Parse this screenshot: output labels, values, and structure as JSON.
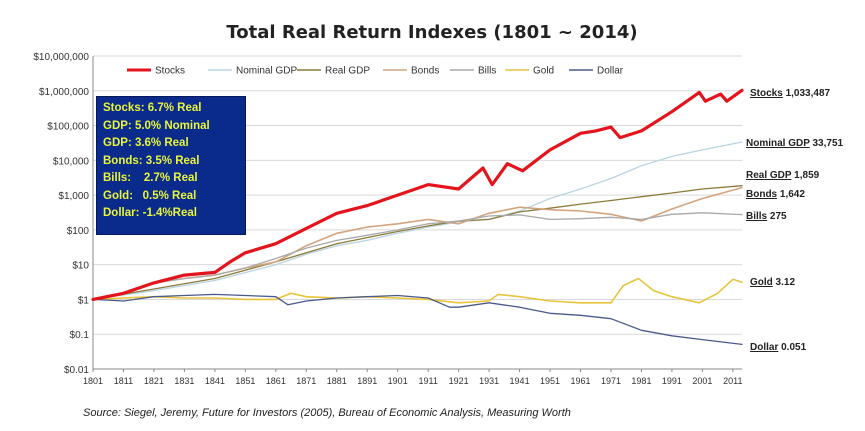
{
  "chart_data": {
    "type": "line",
    "title": "Total Real Return Indexes (1801 ~ 2014)",
    "y_scale": "log",
    "ylim": [
      0.01,
      10000000
    ],
    "xlim": [
      1801,
      2014
    ],
    "y_tick_labels": [
      "$10,000,000",
      "$1,000,000",
      "$100,000",
      "$10,000",
      "$1,000",
      "$100",
      "$10",
      "$1",
      "$0.1",
      "$0.01"
    ],
    "y_tick_values": [
      10000000,
      1000000,
      100000,
      10000,
      1000,
      100,
      10,
      1,
      0.1,
      0.01
    ],
    "x_tick_labels": [
      "1801",
      "1811",
      "1821",
      "1831",
      "1841",
      "1851",
      "1861",
      "1871",
      "1881",
      "1891",
      "1901",
      "1911",
      "1921",
      "1931",
      "1941",
      "1951",
      "1961",
      "1971",
      "1981",
      "1991",
      "2001",
      "2011"
    ],
    "x_tick_values": [
      1801,
      1811,
      1821,
      1831,
      1841,
      1851,
      1861,
      1871,
      1881,
      1891,
      1901,
      1911,
      1921,
      1931,
      1941,
      1951,
      1961,
      1971,
      1981,
      1991,
      2001,
      2011
    ],
    "grid": "horizontal",
    "legend_position": "top",
    "series": [
      {
        "name": "Stocks",
        "color": "#e3141c",
        "width": 3.2,
        "end_label": "Stocks",
        "end_value_text": "1,033,487",
        "points": [
          [
            1801,
            1
          ],
          [
            1811,
            1.5
          ],
          [
            1821,
            3
          ],
          [
            1831,
            5
          ],
          [
            1841,
            6
          ],
          [
            1846,
            12
          ],
          [
            1851,
            22
          ],
          [
            1861,
            40
          ],
          [
            1871,
            110
          ],
          [
            1881,
            300
          ],
          [
            1891,
            500
          ],
          [
            1901,
            1000
          ],
          [
            1911,
            2000
          ],
          [
            1921,
            1500
          ],
          [
            1929,
            6000
          ],
          [
            1932,
            2000
          ],
          [
            1937,
            8000
          ],
          [
            1942,
            5000
          ],
          [
            1951,
            20000
          ],
          [
            1961,
            60000
          ],
          [
            1966,
            70000
          ],
          [
            1971,
            90000
          ],
          [
            1974,
            45000
          ],
          [
            1981,
            70000
          ],
          [
            1991,
            250000
          ],
          [
            2000,
            900000
          ],
          [
            2002,
            500000
          ],
          [
            2007,
            800000
          ],
          [
            2009,
            500000
          ],
          [
            2014,
            1033487
          ]
        ]
      },
      {
        "name": "Nominal GDP",
        "color": "#b9d5e0",
        "width": 1.3,
        "end_label": "Nominal GDP",
        "end_value_text": "33,751",
        "points": [
          [
            1801,
            1
          ],
          [
            1821,
            1.8
          ],
          [
            1841,
            3.5
          ],
          [
            1861,
            10
          ],
          [
            1871,
            20
          ],
          [
            1881,
            35
          ],
          [
            1891,
            50
          ],
          [
            1901,
            80
          ],
          [
            1911,
            120
          ],
          [
            1921,
            170
          ],
          [
            1931,
            200
          ],
          [
            1941,
            350
          ],
          [
            1951,
            800
          ],
          [
            1961,
            1500
          ],
          [
            1971,
            3000
          ],
          [
            1981,
            7000
          ],
          [
            1991,
            13000
          ],
          [
            2001,
            20000
          ],
          [
            2014,
            33751
          ]
        ]
      },
      {
        "name": "Real GDP",
        "color": "#8b7a3a",
        "width": 1.3,
        "end_label": "Real GDP",
        "end_value_text": "1,859",
        "points": [
          [
            1801,
            1
          ],
          [
            1821,
            2
          ],
          [
            1841,
            4
          ],
          [
            1861,
            12
          ],
          [
            1871,
            22
          ],
          [
            1881,
            40
          ],
          [
            1891,
            60
          ],
          [
            1901,
            90
          ],
          [
            1911,
            130
          ],
          [
            1921,
            180
          ],
          [
            1931,
            200
          ],
          [
            1941,
            330
          ],
          [
            1951,
            420
          ],
          [
            1961,
            550
          ],
          [
            1971,
            700
          ],
          [
            1981,
            900
          ],
          [
            1991,
            1150
          ],
          [
            2001,
            1500
          ],
          [
            2014,
            1859
          ]
        ]
      },
      {
        "name": "Bonds",
        "color": "#d4a47e",
        "width": 1.6,
        "end_label": "Bonds",
        "end_value_text": "1,642",
        "points": [
          [
            1801,
            1
          ],
          [
            1811,
            1.5
          ],
          [
            1821,
            3
          ],
          [
            1831,
            4
          ],
          [
            1841,
            5
          ],
          [
            1851,
            8
          ],
          [
            1861,
            12
          ],
          [
            1871,
            35
          ],
          [
            1881,
            80
          ],
          [
            1891,
            120
          ],
          [
            1901,
            150
          ],
          [
            1911,
            200
          ],
          [
            1921,
            150
          ],
          [
            1931,
            300
          ],
          [
            1941,
            450
          ],
          [
            1951,
            380
          ],
          [
            1961,
            350
          ],
          [
            1971,
            280
          ],
          [
            1981,
            180
          ],
          [
            1991,
            400
          ],
          [
            2001,
            800
          ],
          [
            2014,
            1642
          ]
        ]
      },
      {
        "name": "Bills",
        "color": "#a9a9a9",
        "width": 1.3,
        "end_label": "Bills",
        "end_value_text": "275",
        "points": [
          [
            1801,
            1
          ],
          [
            1811,
            1.4
          ],
          [
            1821,
            3
          ],
          [
            1831,
            4
          ],
          [
            1841,
            5
          ],
          [
            1851,
            8
          ],
          [
            1861,
            15
          ],
          [
            1871,
            30
          ],
          [
            1881,
            50
          ],
          [
            1891,
            70
          ],
          [
            1901,
            100
          ],
          [
            1911,
            150
          ],
          [
            1921,
            180
          ],
          [
            1931,
            250
          ],
          [
            1941,
            270
          ],
          [
            1951,
            200
          ],
          [
            1961,
            210
          ],
          [
            1971,
            230
          ],
          [
            1981,
            200
          ],
          [
            1991,
            280
          ],
          [
            2001,
            310
          ],
          [
            2014,
            275
          ]
        ]
      },
      {
        "name": "Gold",
        "color": "#e8c43b",
        "width": 1.6,
        "end_label": "Gold",
        "end_value_text": "3.12",
        "points": [
          [
            1801,
            1
          ],
          [
            1811,
            1.1
          ],
          [
            1821,
            1.2
          ],
          [
            1831,
            1.1
          ],
          [
            1841,
            1.1
          ],
          [
            1851,
            1
          ],
          [
            1861,
            1
          ],
          [
            1866,
            1.5
          ],
          [
            1871,
            1.2
          ],
          [
            1881,
            1.1
          ],
          [
            1891,
            1.2
          ],
          [
            1901,
            1.1
          ],
          [
            1911,
            1
          ],
          [
            1921,
            0.8
          ],
          [
            1931,
            0.9
          ],
          [
            1934,
            1.4
          ],
          [
            1941,
            1.2
          ],
          [
            1951,
            0.9
          ],
          [
            1961,
            0.8
          ],
          [
            1971,
            0.8
          ],
          [
            1975,
            2.5
          ],
          [
            1980,
            4
          ],
          [
            1985,
            1.8
          ],
          [
            1991,
            1.2
          ],
          [
            2000,
            0.8
          ],
          [
            2006,
            1.5
          ],
          [
            2011,
            3.8
          ],
          [
            2014,
            3.12
          ]
        ]
      },
      {
        "name": "Dollar",
        "color": "#4a5a8c",
        "width": 1.3,
        "end_label": "Dollar",
        "end_value_text": "0.051",
        "points": [
          [
            1801,
            1
          ],
          [
            1811,
            0.9
          ],
          [
            1821,
            1.2
          ],
          [
            1831,
            1.3
          ],
          [
            1841,
            1.4
          ],
          [
            1851,
            1.3
          ],
          [
            1861,
            1.2
          ],
          [
            1865,
            0.7
          ],
          [
            1871,
            0.9
          ],
          [
            1881,
            1.1
          ],
          [
            1891,
            1.2
          ],
          [
            1901,
            1.3
          ],
          [
            1911,
            1.1
          ],
          [
            1918,
            0.6
          ],
          [
            1921,
            0.6
          ],
          [
            1931,
            0.8
          ],
          [
            1941,
            0.6
          ],
          [
            1951,
            0.4
          ],
          [
            1961,
            0.35
          ],
          [
            1971,
            0.28
          ],
          [
            1981,
            0.13
          ],
          [
            1991,
            0.09
          ],
          [
            2001,
            0.07
          ],
          [
            2014,
            0.051
          ]
        ]
      }
    ],
    "info_box": [
      "Stocks: 6.7% Real",
      "GDP: 5.0% Nominal",
      "GDP: 3.6% Real",
      "Bonds: 3.5% Real",
      "Bills:    2.7% Real",
      "Gold:   0.5% Real",
      "Dollar: -1.4%Real"
    ],
    "source": "Source: Siegel, Jeremy, Future for Investors (2005), Bureau of Economic Analysis, Measuring Worth"
  }
}
